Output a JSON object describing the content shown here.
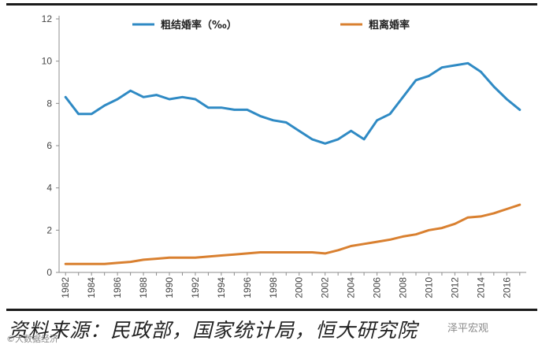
{
  "chart_data": {
    "type": "line",
    "ylim": [
      0,
      12
    ],
    "yticks": [
      0,
      2,
      4,
      6,
      8,
      10,
      12
    ],
    "x": [
      1982,
      1983,
      1984,
      1985,
      1986,
      1987,
      1988,
      1989,
      1990,
      1991,
      1992,
      1993,
      1994,
      1995,
      1996,
      1997,
      1998,
      1999,
      2000,
      2001,
      2002,
      2003,
      2004,
      2005,
      2006,
      2007,
      2008,
      2009,
      2010,
      2011,
      2012,
      2013,
      2014,
      2015,
      2016,
      2017
    ],
    "xticks": [
      "1982",
      "1984",
      "1986",
      "1988",
      "1990",
      "1992",
      "1994",
      "1996",
      "1998",
      "2000",
      "2002",
      "2004",
      "2006",
      "2008",
      "2010",
      "2012",
      "2014",
      "2016"
    ],
    "legend_position": "top",
    "grid": false,
    "series": [
      {
        "name": "粗结婚率（‰）",
        "color": "#2f8ac4",
        "values": [
          8.3,
          7.5,
          7.5,
          7.9,
          8.2,
          8.6,
          8.3,
          8.4,
          8.2,
          8.3,
          8.2,
          7.8,
          7.8,
          7.7,
          7.7,
          7.4,
          7.2,
          7.1,
          6.7,
          6.3,
          6.1,
          6.3,
          6.7,
          6.3,
          7.2,
          7.5,
          8.3,
          9.1,
          9.3,
          9.7,
          9.8,
          9.9,
          9.5,
          8.8,
          8.2,
          7.7
        ]
      },
      {
        "name": "粗离婚率",
        "color": "#d98030",
        "values": [
          0.4,
          0.4,
          0.4,
          0.4,
          0.45,
          0.5,
          0.6,
          0.65,
          0.7,
          0.7,
          0.7,
          0.75,
          0.8,
          0.85,
          0.9,
          0.95,
          0.95,
          0.95,
          0.95,
          0.95,
          0.9,
          1.05,
          1.25,
          1.35,
          1.45,
          1.55,
          1.7,
          1.8,
          2.0,
          2.1,
          2.3,
          2.6,
          2.65,
          2.8,
          3.0,
          3.2
        ]
      }
    ]
  },
  "source_text": "资料来源：民政部，国家统计局，恒大研究院",
  "watermark_left": "©大数据经济",
  "watermark_right": "泽平宏观"
}
